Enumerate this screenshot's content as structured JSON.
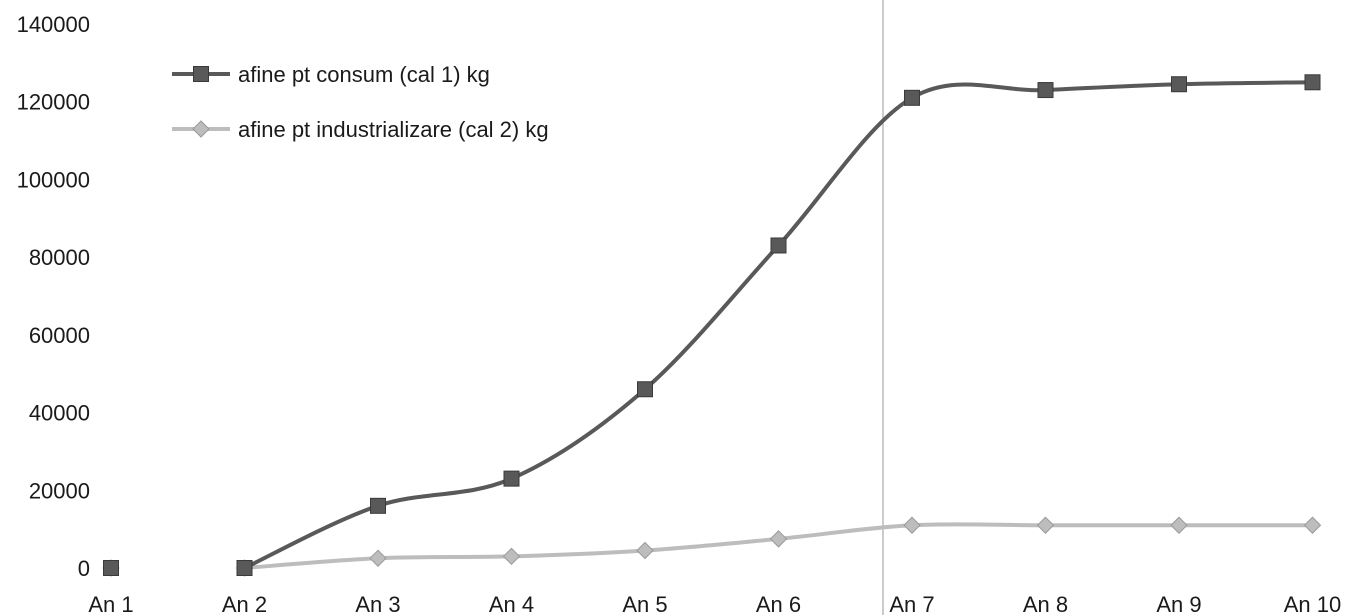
{
  "chart_data": {
    "type": "line",
    "categories": [
      "An 1",
      "An 2",
      "An 3",
      "An 4",
      "An 5",
      "An 6",
      "An 7",
      "An 8",
      "An 9",
      "An 10"
    ],
    "series": [
      {
        "name": "afine pt consum (cal 1) kg",
        "values": [
          0,
          0,
          16000,
          23000,
          46000,
          83000,
          121000,
          123000,
          124500,
          125000
        ],
        "color": "#595959",
        "marker": "square"
      },
      {
        "name": "afine pt industrializare (cal 2) kg",
        "values": [
          0,
          0,
          2500,
          3000,
          4500,
          7500,
          11000,
          11000,
          11000,
          11000
        ],
        "color": "#bdbdbd",
        "marker": "diamond"
      }
    ],
    "ylim": [
      0,
      140000
    ],
    "yticks": [
      0,
      20000,
      40000,
      60000,
      80000,
      100000,
      120000,
      140000
    ],
    "title": "",
    "xlabel": "",
    "ylabel": "",
    "grid": false,
    "legend": "top-left",
    "smooth": true
  }
}
